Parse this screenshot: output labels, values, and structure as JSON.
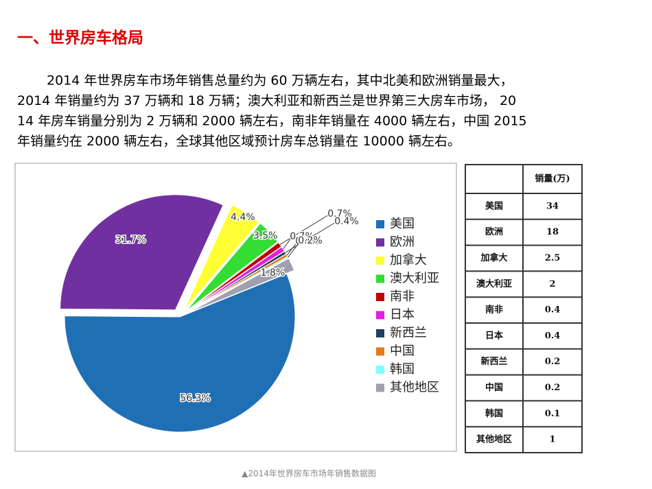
{
  "heading": "一、世界房车格局",
  "paragraph": [
    "2014 年世界房车市场年销售总量约为 60 万辆左右，其中北美和欧洲销量最大，",
    "2014 年销量约为 37 万辆和 18 万辆；澳大利亚和新西兰是世界第三大房车市场， 20",
    "14 年房车销量分别为 2 万辆和 2000 辆左右，南非年销量在 4000 辆左右，中国 2015",
    "年销量约在 2000 辆左右，全球其他区域预计房车总销量在 10000 辆左右。"
  ],
  "chart_data": {
    "type": "pie",
    "categories": [
      "美国",
      "欧洲",
      "加拿大",
      "澳大利亚",
      "南非",
      "日本",
      "新西兰",
      "中国",
      "韩国",
      "其他地区"
    ],
    "values": [
      56.3,
      31.7,
      4.4,
      3.5,
      0.7,
      0.7,
      0.4,
      0.4,
      0.2,
      1.8
    ],
    "value_labels": [
      "56.3%",
      "31.7%",
      "4.4%",
      "3.5%",
      "0.7%",
      "0.7%",
      "0.4%",
      "0.4%",
      "0.2%",
      "1.8%"
    ],
    "colors": [
      "#1f6fb5",
      "#7030a0",
      "#ffff33",
      "#33dd33",
      "#c00000",
      "#e020e0",
      "#1f3f5f",
      "#e07b20",
      "#80ffff",
      "#a0a0b0"
    ],
    "legend": "right"
  },
  "table": {
    "header": "销量(万)",
    "rows": [
      [
        "美国",
        34
      ],
      [
        "欧洲",
        18
      ],
      [
        "加拿大",
        2.5
      ],
      [
        "澳大利亚",
        2
      ],
      [
        "南非",
        0.4
      ],
      [
        "日本",
        0.4
      ],
      [
        "新西兰",
        0.2
      ],
      [
        "中国",
        0.2
      ],
      [
        "韩国",
        0.1
      ],
      [
        "其他地区",
        1
      ]
    ]
  },
  "caption": "▲2014年世界房车市场年销售数据图"
}
